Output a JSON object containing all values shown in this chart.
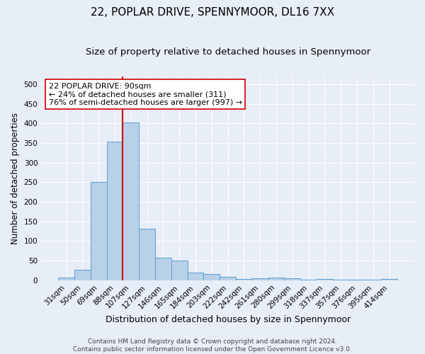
{
  "title": "22, POPLAR DRIVE, SPENNYMOOR, DL16 7XX",
  "subtitle": "Size of property relative to detached houses in Spennymoor",
  "xlabel": "Distribution of detached houses by size in Spennymoor",
  "ylabel": "Number of detached properties",
  "categories": [
    "31sqm",
    "50sqm",
    "69sqm",
    "88sqm",
    "107sqm",
    "127sqm",
    "146sqm",
    "165sqm",
    "184sqm",
    "203sqm",
    "222sqm",
    "242sqm",
    "261sqm",
    "280sqm",
    "299sqm",
    "318sqm",
    "337sqm",
    "357sqm",
    "376sqm",
    "395sqm",
    "414sqm"
  ],
  "values": [
    7,
    26,
    251,
    354,
    403,
    131,
    58,
    50,
    20,
    16,
    8,
    4,
    6,
    7,
    5,
    1,
    4,
    1,
    1,
    1,
    4
  ],
  "bar_color": "#b8d0e8",
  "bar_edge_color": "#5a9fd4",
  "vline_x_idx": 3.5,
  "vline_color": "#cc0000",
  "annotation_text": "22 POPLAR DRIVE: 90sqm\n← 24% of detached houses are smaller (311)\n76% of semi-detached houses are larger (997) →",
  "annotation_box_color": "#ffffff",
  "annotation_box_edge_color": "#cc0000",
  "ylim": [
    0,
    520
  ],
  "yticks": [
    0,
    50,
    100,
    150,
    200,
    250,
    300,
    350,
    400,
    450,
    500
  ],
  "background_color": "#e8eef7",
  "grid_color": "#ffffff",
  "footer_line1": "Contains HM Land Registry data © Crown copyright and database right 2024.",
  "footer_line2": "Contains public sector information licensed under the Open Government Licence v3.0.",
  "title_fontsize": 11,
  "subtitle_fontsize": 9.5,
  "xlabel_fontsize": 9,
  "ylabel_fontsize": 8.5,
  "tick_fontsize": 7.5,
  "footer_fontsize": 6.5,
  "annot_fontsize": 8
}
